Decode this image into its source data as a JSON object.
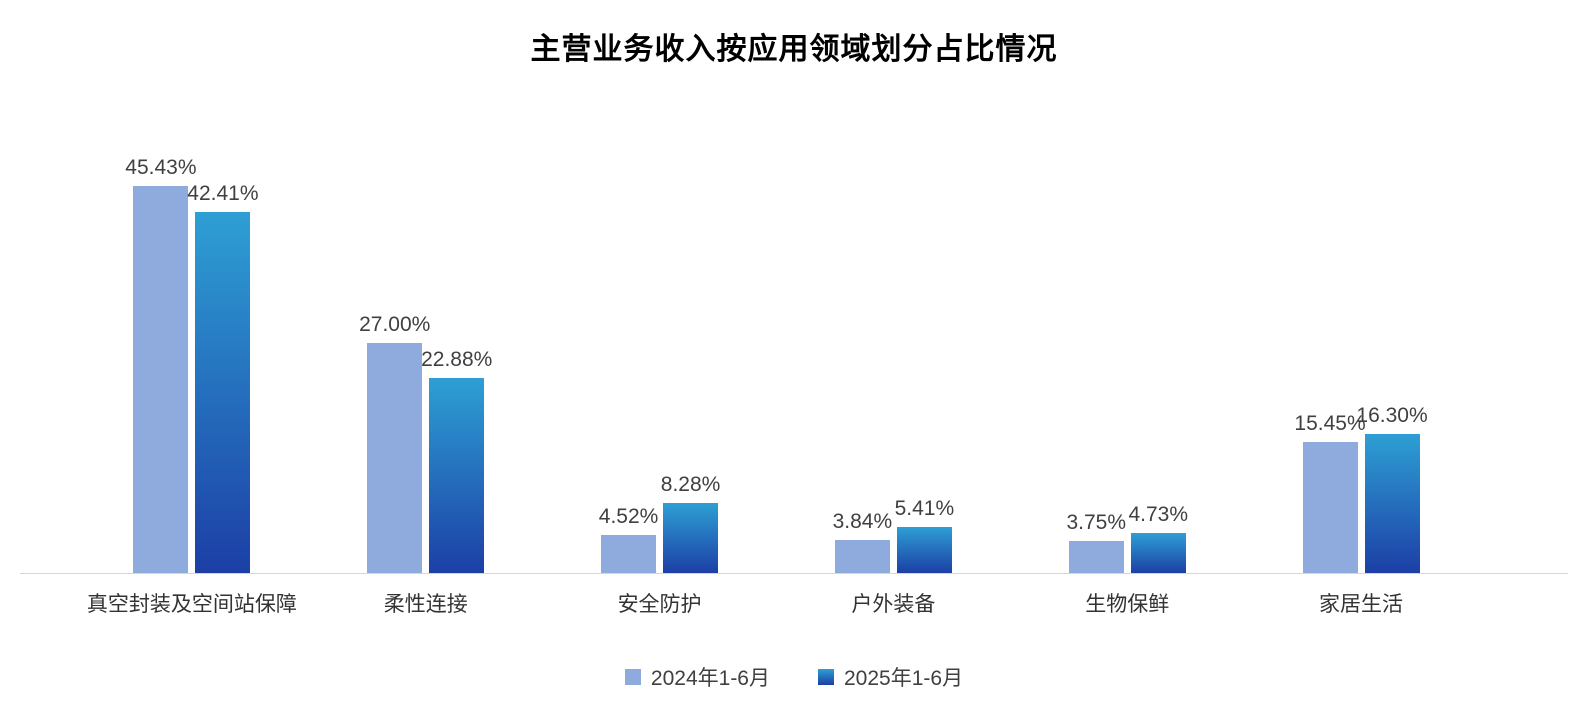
{
  "title": "主营业务收入按应用领域划分占比情况",
  "colors": {
    "series1": "#8FAADC",
    "series2_top": "#2E9FD4",
    "series2_bottom": "#1C3FA6",
    "axis_line": "#d6d6d6",
    "label_text": "#404040"
  },
  "chart_data": {
    "type": "bar",
    "title": "主营业务收入按应用领域划分占比情况",
    "categories": [
      "真空封装及空间站保障",
      "柔性连接",
      "安全防护",
      "户外装备",
      "生物保鲜",
      "家居生活"
    ],
    "series": [
      {
        "name": "2024年1-6月",
        "values": [
          45.43,
          27.0,
          4.52,
          3.84,
          3.75,
          15.45
        ],
        "labels": [
          "45.43%",
          "27.00%",
          "4.52%",
          "3.84%",
          "3.75%",
          "15.45%"
        ]
      },
      {
        "name": "2025年1-6月",
        "values": [
          42.41,
          22.88,
          8.28,
          5.41,
          4.73,
          16.3
        ],
        "labels": [
          "42.41%",
          "22.88%",
          "8.28%",
          "5.41%",
          "4.73%",
          "16.30%"
        ]
      }
    ],
    "xlabel": "",
    "ylabel": "",
    "ylim": [
      0,
      47
    ],
    "grid": false,
    "legend_position": "bottom"
  }
}
